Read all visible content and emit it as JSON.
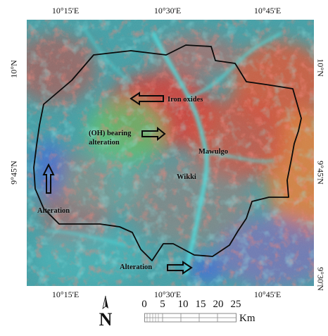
{
  "coords": {
    "top": [
      "10°15'E",
      "10°30'E",
      "10°45'E"
    ],
    "bottom": [
      "10°15'E",
      "10°30'E",
      "10°45'E"
    ],
    "left": [
      "10°N",
      "9°45'N"
    ],
    "right": [
      "10°N",
      "9°45'N",
      "9°30'N"
    ]
  },
  "labels": {
    "iron_oxides": "Iron oxides",
    "oh_bearing_line1": "(OH) bearing",
    "oh_bearing_line2": "alteration",
    "mawulgo": "Mawulgo",
    "wikki": "Wikki",
    "alteration_left": "Alteration",
    "alteration_bottom": "Alteration"
  },
  "scale_bar": {
    "ticks": [
      "0",
      "5",
      "10",
      "15",
      "20",
      "25"
    ],
    "unit": "Km"
  },
  "north_arrow": {
    "letter": "N"
  },
  "colors": {
    "base": "#3f9fa6",
    "red": "#e0342c",
    "green": "#58c46a",
    "cyan": "#3fd3d8",
    "orange": "#ee7a2d",
    "purple": "#7c6cb8",
    "blue": "#3b66d8",
    "boundary": "#0a0a0a"
  }
}
